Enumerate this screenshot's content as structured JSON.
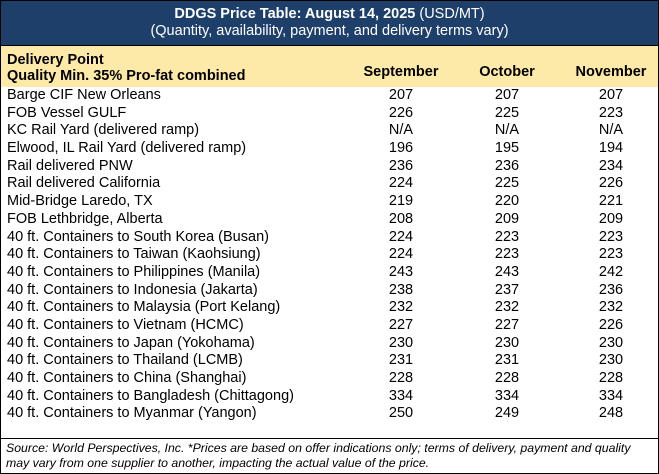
{
  "title": {
    "bold": "DDGS Price Table: August 14, 2025",
    "unit": " (USD/MT)",
    "subtitle": "(Quantity, availability, payment, and delivery terms vary)"
  },
  "header": {
    "line1": "Delivery Point",
    "line2": "Quality Min. 35% Pro-fat combined",
    "columns": [
      "September",
      "October",
      "November"
    ]
  },
  "rows": [
    {
      "name": "Barge CIF New Orleans",
      "values": [
        "207",
        "207",
        "207"
      ]
    },
    {
      "name": "FOB Vessel GULF",
      "values": [
        "226",
        "225",
        "223"
      ]
    },
    {
      "name": "KC Rail Yard (delivered ramp)",
      "values": [
        "N/A",
        "N/A",
        "N/A"
      ]
    },
    {
      "name": "Elwood, IL Rail Yard (delivered ramp)",
      "values": [
        "196",
        "195",
        "194"
      ]
    },
    {
      "name": "Rail delivered PNW",
      "values": [
        "236",
        "236",
        "234"
      ]
    },
    {
      "name": "Rail delivered California",
      "values": [
        "224",
        "225",
        "226"
      ]
    },
    {
      "name": "Mid-Bridge Laredo, TX",
      "values": [
        "219",
        "220",
        "221"
      ]
    },
    {
      "name": "FOB Lethbridge, Alberta",
      "values": [
        "208",
        "209",
        "209"
      ]
    },
    {
      "name": "40 ft. Containers to South Korea (Busan)",
      "values": [
        "224",
        "223",
        "223"
      ]
    },
    {
      "name": "40 ft. Containers to Taiwan (Kaohsiung)",
      "values": [
        "224",
        "223",
        "223"
      ]
    },
    {
      "name": "40 ft. Containers to Philippines (Manila)",
      "values": [
        "243",
        "243",
        "242"
      ]
    },
    {
      "name": "40 ft. Containers to Indonesia (Jakarta)",
      "values": [
        "238",
        "237",
        "236"
      ]
    },
    {
      "name": "40 ft. Containers to Malaysia (Port Kelang)",
      "values": [
        "232",
        "232",
        "232"
      ]
    },
    {
      "name": "40 ft. Containers to Vietnam (HCMC)",
      "values": [
        "227",
        "227",
        "226"
      ]
    },
    {
      "name": "40 ft. Containers to Japan (Yokohama)",
      "values": [
        "230",
        "230",
        "230"
      ]
    },
    {
      "name": "40 ft. Containers to Thailand (LCMB)",
      "values": [
        "231",
        "231",
        "230"
      ]
    },
    {
      "name": "40 ft. Containers to China (Shanghai)",
      "values": [
        "228",
        "228",
        "228"
      ]
    },
    {
      "name": "40 ft. Containers to Bangladesh (Chittagong)",
      "values": [
        "334",
        "334",
        "334"
      ]
    },
    {
      "name": "40 ft. Containers to Myanmar (Yangon)",
      "values": [
        "250",
        "249",
        "248"
      ]
    }
  ],
  "footer": "Source: World Perspectives, Inc. *Prices are based on offer indications only; terms of delivery, payment and quality may vary from one supplier to another, impacting the actual value of the price.",
  "colors": {
    "title_bg": "#1f3f6b",
    "header_bg": "#fde9a8"
  }
}
